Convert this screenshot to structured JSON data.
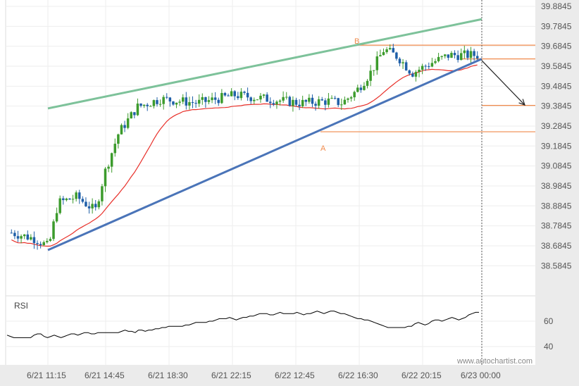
{
  "chart_data": {
    "type": "candlestick",
    "price_axis": {
      "ticks": [
        "39.8845",
        "39.7845",
        "39.6845",
        "39.5845",
        "39.4845",
        "39.3845",
        "39.2845",
        "39.1845",
        "39.0845",
        "38.9845",
        "38.8845",
        "38.7845",
        "38.6845",
        "38.5845"
      ],
      "range": [
        38.5345,
        39.9045
      ]
    },
    "time_axis": {
      "ticks": [
        "6/21 11:15",
        "6/21 14:45",
        "6/21 18:30",
        "6/21 22:15",
        "6/22 12:45",
        "6/22 16:30",
        "6/22 20:15",
        "6/23 00:00"
      ]
    },
    "colors": {
      "up": "#3c9b2c",
      "down": "#1f5fa8",
      "support": "#4a74b8",
      "resistance": "#7dc29a",
      "levels": "#f08a4b",
      "ma": "#e8302a",
      "rsi": "#000000",
      "axis_band": "#ebebeb"
    },
    "pattern": {
      "point_labels": [
        "A",
        "B"
      ],
      "resistance_line": {
        "from": [
          "6/21 11:15",
          39.373
        ],
        "to": [
          "6/23 00:00",
          39.82
        ]
      },
      "support_line": {
        "from": [
          "6/21 11:15",
          38.663
        ],
        "to": [
          "6/23 00:00",
          39.621
        ]
      },
      "levels": [
        39.69,
        39.621,
        39.388,
        39.256
      ],
      "forecast": {
        "from": 39.613,
        "to": 39.39
      }
    },
    "rsi": {
      "label": "RSI",
      "ticks": [
        60,
        40
      ],
      "range": [
        30,
        80
      ],
      "values": [
        49,
        48,
        47,
        47,
        47,
        47,
        47,
        47,
        49,
        50,
        50,
        48,
        47,
        48,
        49,
        48,
        47,
        48,
        49,
        50,
        50,
        49,
        50,
        51,
        51,
        50,
        50,
        51,
        51,
        51,
        51,
        51,
        51,
        51,
        52,
        53,
        52,
        52,
        51,
        53,
        53,
        52,
        53,
        53,
        54,
        54,
        55,
        55,
        56,
        56,
        56,
        56,
        56,
        57,
        57,
        58,
        59,
        59,
        59,
        59,
        60,
        60,
        61,
        62,
        62,
        62,
        63,
        62,
        61,
        62,
        63,
        63,
        64,
        64,
        65,
        66,
        66,
        66,
        65,
        65,
        66,
        67,
        66,
        66,
        66,
        66,
        67,
        66,
        65,
        66,
        66,
        67,
        68,
        67,
        66,
        67,
        68,
        68,
        67,
        66,
        66,
        65,
        64,
        63,
        62,
        62,
        61,
        61,
        60,
        59,
        58,
        57,
        56,
        55,
        55,
        55,
        55,
        55,
        55,
        56,
        56,
        58,
        59,
        58,
        57,
        58,
        60,
        61,
        61,
        60,
        61,
        62,
        63,
        62,
        61,
        62,
        63,
        65,
        66,
        67,
        67
      ],
      "highlight_last": true
    },
    "watermark": "www.autochartist.com"
  }
}
